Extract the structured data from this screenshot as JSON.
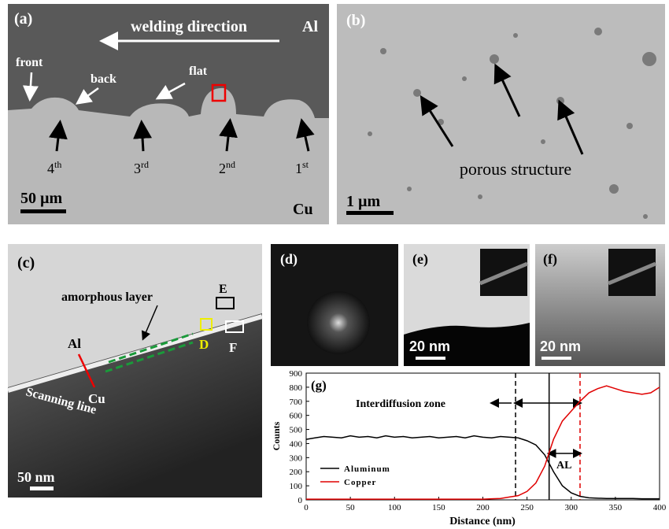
{
  "panels": {
    "a": {
      "label": "(a)",
      "direction": "welding direction",
      "top": "Al",
      "bottom": "Cu",
      "front": "front",
      "back": "back",
      "flat": "flat",
      "passes": [
        {
          "base": "4",
          "sup": "th"
        },
        {
          "base": "3",
          "sup": "rd"
        },
        {
          "base": "2",
          "sup": "nd"
        },
        {
          "base": "1",
          "sup": "st"
        }
      ],
      "scale": "50 µm"
    },
    "b": {
      "label": "(b)",
      "note": "porous structure",
      "scale": "1 µm"
    },
    "c": {
      "label": "(c)",
      "layer": "amorphous layer",
      "e": "E",
      "d": "D",
      "f": "F",
      "al": "Al",
      "cu": "Cu",
      "line": "Scanning line",
      "scale": "50 nm"
    },
    "d": {
      "label": "(d)"
    },
    "e": {
      "label": "(e)",
      "scale": "20 nm"
    },
    "f": {
      "label": "(f)",
      "scale": "20 nm"
    }
  },
  "chart_data": {
    "type": "line",
    "label": "(g)",
    "ylabel": "Counts",
    "xlabel": "Distance (nm)",
    "annotations": [
      "Interdiffusion zone",
      "AL"
    ],
    "x": [
      0,
      10,
      20,
      30,
      40,
      50,
      60,
      70,
      80,
      90,
      100,
      110,
      120,
      130,
      140,
      150,
      160,
      170,
      180,
      190,
      200,
      210,
      220,
      230,
      240,
      250,
      260,
      270,
      280,
      290,
      300,
      310,
      320,
      330,
      340,
      350,
      360,
      370,
      380,
      390,
      400
    ],
    "series": [
      {
        "name": "Aluminum",
        "color": "#000000",
        "values": [
          430,
          440,
          450,
          445,
          440,
          455,
          445,
          450,
          440,
          455,
          445,
          450,
          440,
          445,
          450,
          440,
          445,
          450,
          440,
          455,
          445,
          440,
          450,
          445,
          440,
          420,
          390,
          320,
          200,
          100,
          50,
          25,
          15,
          12,
          10,
          10,
          10,
          10,
          8,
          8,
          8
        ]
      },
      {
        "name": "Copper",
        "color": "#e00000",
        "values": [
          5,
          5,
          5,
          5,
          5,
          5,
          5,
          5,
          5,
          5,
          5,
          5,
          5,
          5,
          5,
          5,
          5,
          5,
          5,
          5,
          5,
          8,
          10,
          20,
          30,
          60,
          120,
          240,
          430,
          560,
          630,
          700,
          760,
          790,
          810,
          790,
          770,
          760,
          750,
          760,
          800
        ]
      }
    ],
    "xlim": [
      0,
      400
    ],
    "xticks": [
      0,
      50,
      100,
      150,
      200,
      250,
      300,
      350,
      400
    ],
    "ylim": [
      0,
      900
    ],
    "yticks": [
      0,
      100,
      200,
      300,
      400,
      500,
      600,
      700,
      800,
      900
    ],
    "grid": false,
    "legend": "lower left",
    "vlines": [
      {
        "x": 237,
        "color": "#000000",
        "style": "dashed"
      },
      {
        "x": 275,
        "color": "#000000",
        "style": "solid"
      },
      {
        "x": 310,
        "color": "#e00000",
        "style": "dashed"
      }
    ]
  }
}
